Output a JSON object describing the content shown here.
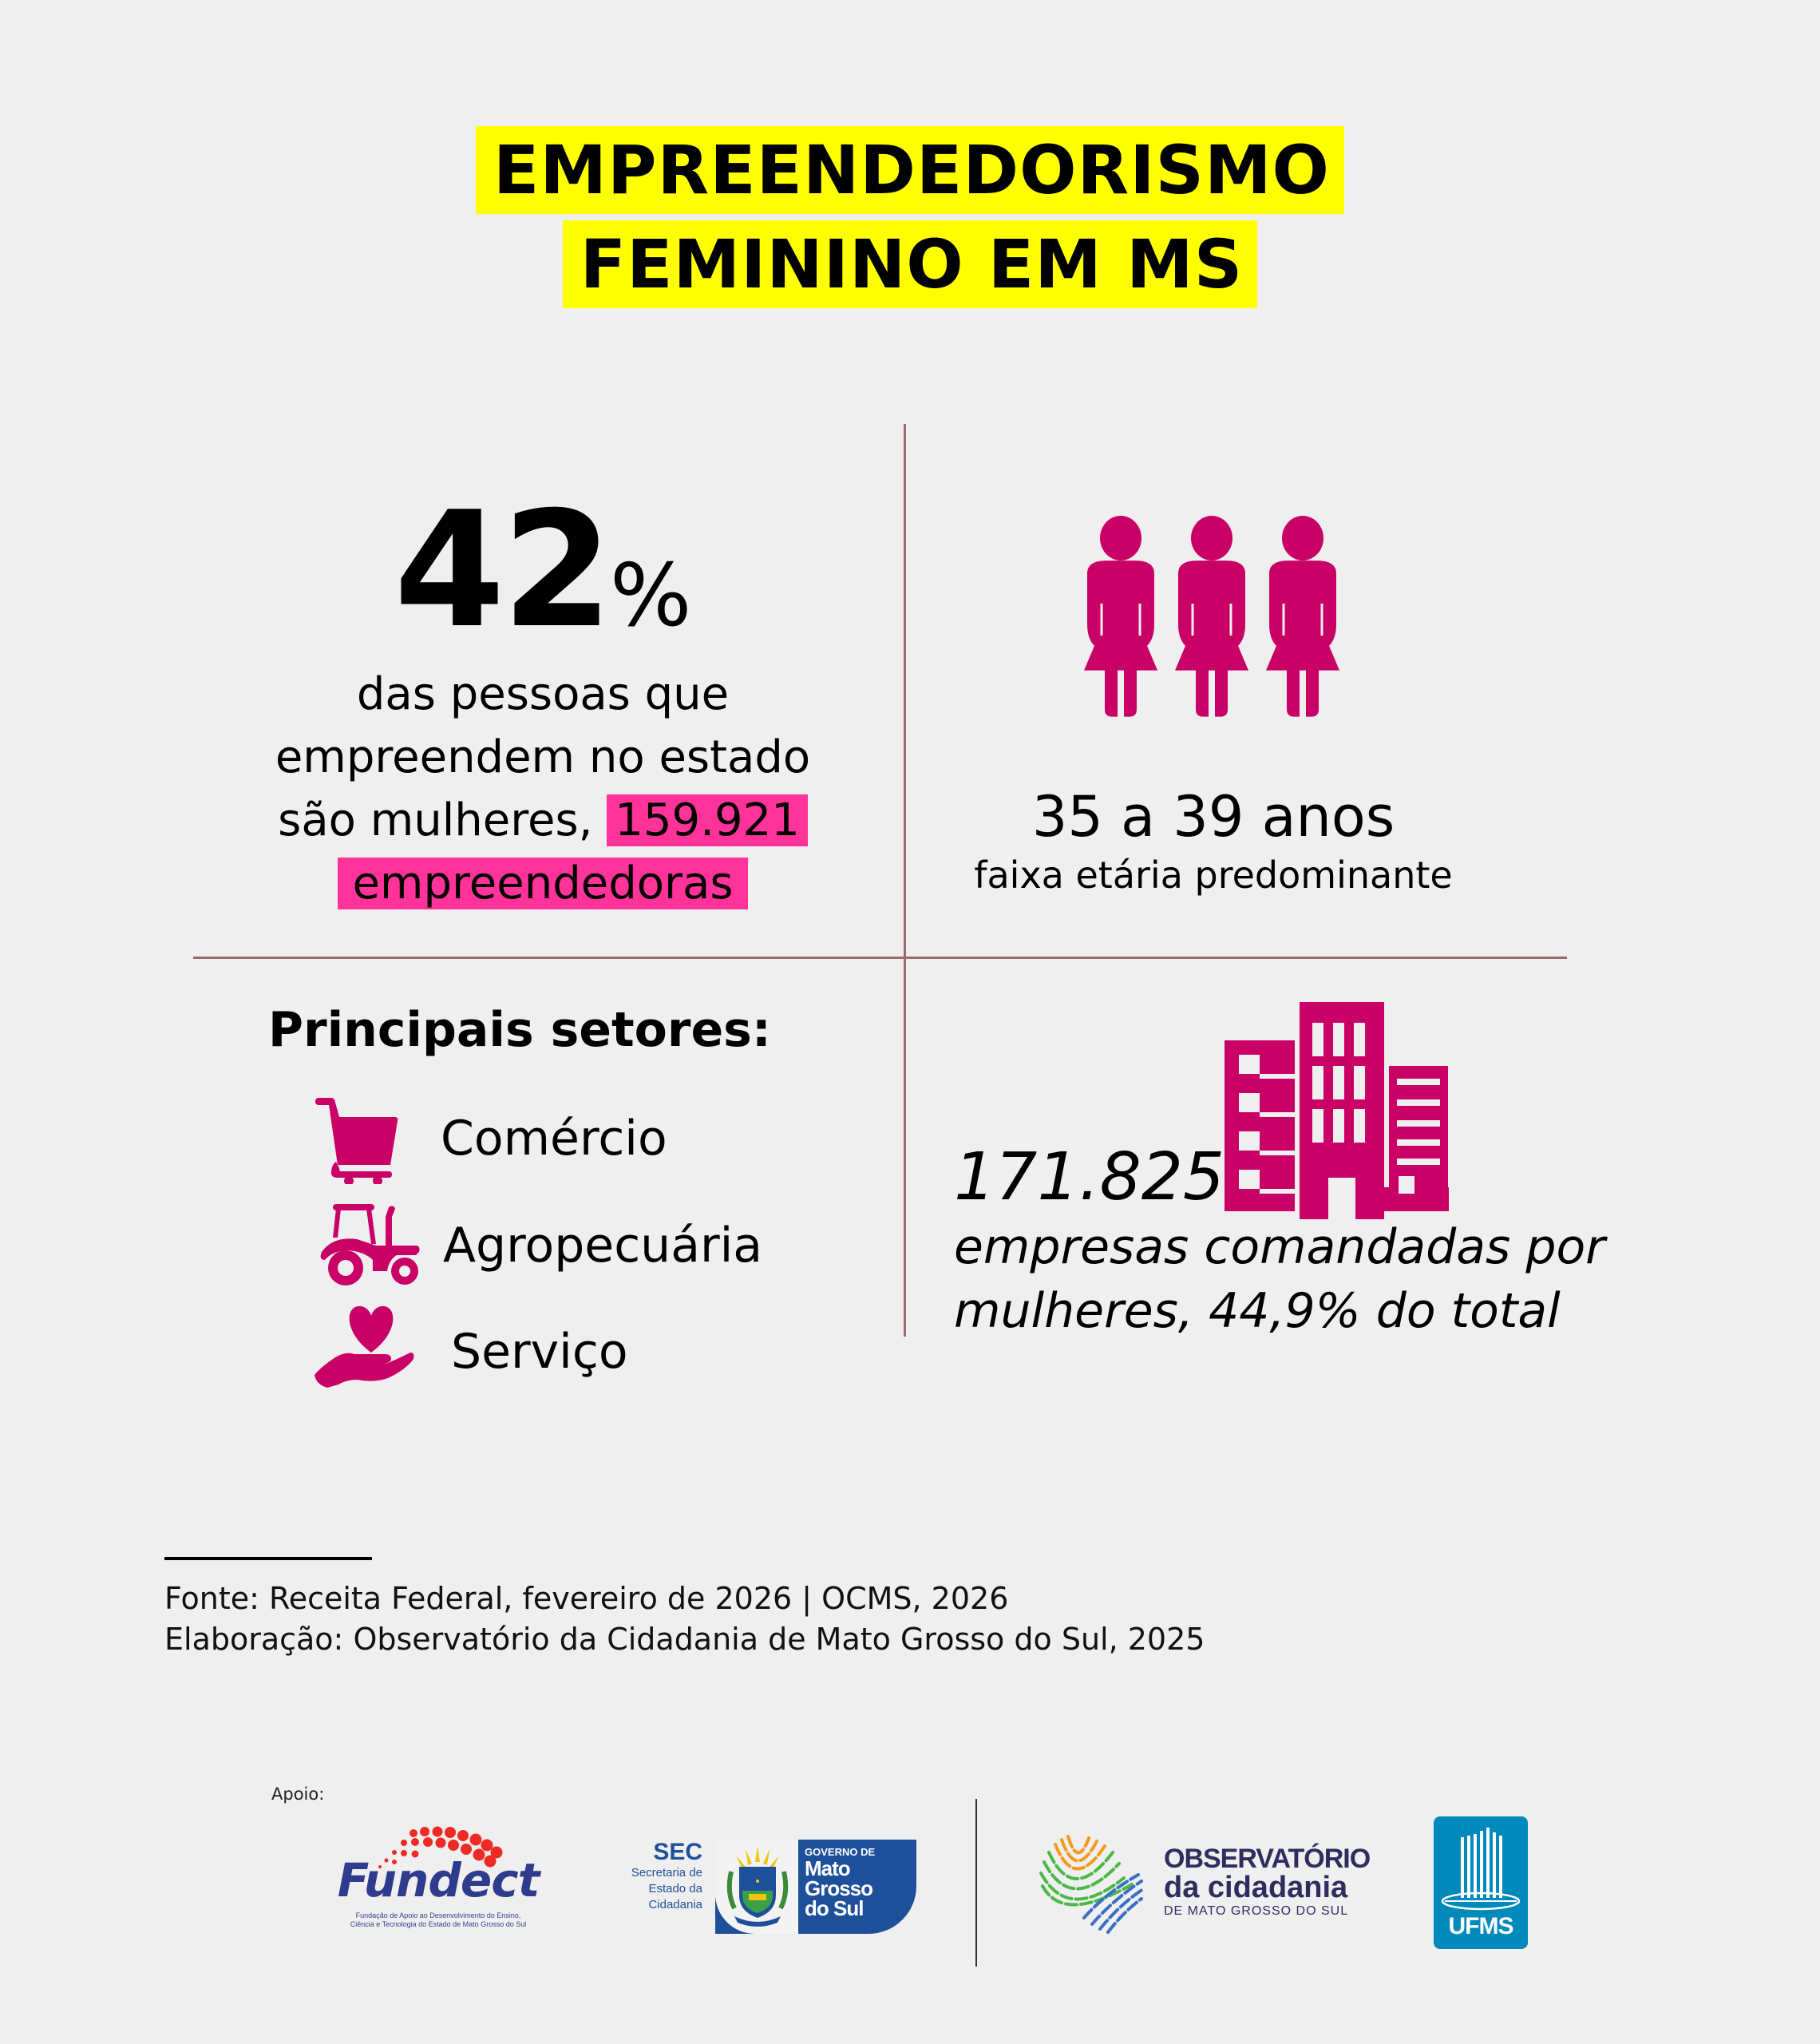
{
  "title": {
    "line1": "EMPREENDEDORISMO",
    "line2": "FEMININO EM MS",
    "highlight_color": "#ffff00"
  },
  "share": {
    "value": "42",
    "unit": "%",
    "text_line1": "das pessoas que",
    "text_line2": "empreendem no estado",
    "text_line3_prefix": "são mulheres,",
    "highlight_number": "159.921",
    "highlight_word": "empreendedoras",
    "highlight_color": "#ff3399"
  },
  "age": {
    "icon": "three-women-icon",
    "range": "35 a 39 anos",
    "caption": "faixa etária predominante"
  },
  "sectors": {
    "title": "Principais setores:",
    "items": [
      {
        "icon": "shopping-cart-icon",
        "label": "Comércio"
      },
      {
        "icon": "tractor-icon",
        "label": "Agropecuária"
      },
      {
        "icon": "heart-in-hand-icon",
        "label": "Serviço"
      }
    ]
  },
  "companies": {
    "icon": "buildings-icon",
    "value": "171.825",
    "desc_line1": "empresas comandadas por",
    "desc_line2": "mulheres, 44,9% do total"
  },
  "source": {
    "fonte": "Fonte: Receita Federal, fevereiro de 2026 | OCMS, 2026",
    "elaboracao": "Elaboração: Observatório da Cidadania de Mato Grosso do Sul, 2025"
  },
  "footer": {
    "apoio_label": "Apoio:",
    "logos": {
      "fundect": {
        "name": "Fundect",
        "subtitle_line1": "Fundação de Apoio ao Desenvolvimento do Ensino,",
        "subtitle_line2": "Ciência e Tecnologia do Estado de Mato Grosso do Sul"
      },
      "sec": {
        "acronym": "SEC",
        "line1": "Secretaria de",
        "line2": "Estado da",
        "line3": "Cidadania",
        "gov_line1": "GOVERNO DE",
        "gov_line2": "Mato",
        "gov_line3": "Grosso",
        "gov_line4": "do Sul"
      },
      "observatorio": {
        "line1": "OBSERVATÓRIO",
        "line2": "da cidadania",
        "line3": "DE MATO GROSSO DO SUL"
      },
      "ufms": {
        "name": "UFMS"
      }
    }
  },
  "colors": {
    "background": "#efefef",
    "icon": "#c90065",
    "divider": "#9c6b6b",
    "gov_blue": "#1d4f9a",
    "ufms_blue": "#0089bb",
    "observatorio_text": "#2f2d5e"
  }
}
